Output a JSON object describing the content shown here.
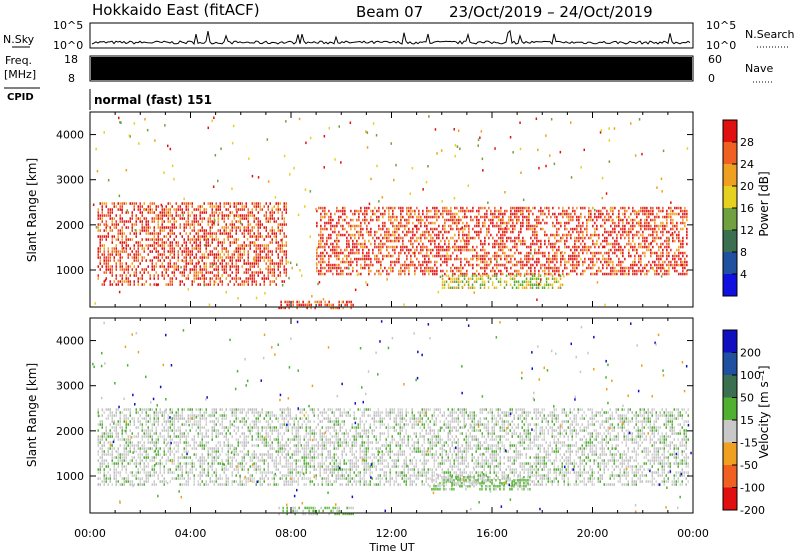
{
  "header": {
    "station": "Hokkaido East (fitACF)",
    "beam": "Beam 07",
    "dates": "23/Oct/2019 – 24/Oct/2019"
  },
  "chart_data": [
    {
      "type": "line",
      "id": "noise",
      "label_left": "N.Sky",
      "label_right": "N.Search",
      "ticks_left": [
        "10^5",
        "10^0"
      ],
      "ticks_right": [
        "10^5",
        "10^0"
      ],
      "legend_right_style": "dotted"
    },
    {
      "type": "bar",
      "id": "freq-nave",
      "label_left_top": "Freq.",
      "label_left_bottom": "[MHz]",
      "ticks_left": [
        "18",
        "8"
      ],
      "label_right": "Nave",
      "ticks_right": [
        "60",
        "0"
      ],
      "legend_right_style": "dotted"
    },
    {
      "type": "table",
      "id": "cpid",
      "label": "CPID",
      "value": "normal (fast) 151"
    },
    {
      "type": "heatmap",
      "id": "power",
      "ylabel": "Slant Range [km]",
      "xlabel": "",
      "yticks": [
        1000,
        2000,
        3000,
        4000
      ],
      "ylim": [
        180,
        4500
      ],
      "xlim": [
        0,
        24
      ],
      "colorbar_label": "Power [dB]",
      "colorbar_ticks": [
        "28",
        "24",
        "20",
        "16",
        "12",
        "8",
        "4"
      ],
      "colorbar_colors": [
        "#e01010",
        "#f06020",
        "#f0a020",
        "#e6d020",
        "#70a040",
        "#3a7050",
        "#2050a0",
        "#1010e0"
      ],
      "bands": [
        {
          "t0": 0.3,
          "t1": 7.8,
          "r0": 700,
          "r1": 2500,
          "level": "high"
        },
        {
          "t0": 9.0,
          "t1": 23.8,
          "r0": 900,
          "r1": 2400,
          "level": "high"
        },
        {
          "t0": 14.0,
          "t1": 18.8,
          "r0": 600,
          "r1": 900,
          "level": "medium"
        },
        {
          "t0": 7.5,
          "t1": 10.5,
          "r0": 180,
          "r1": 320,
          "level": "high"
        }
      ]
    },
    {
      "type": "heatmap",
      "id": "velocity",
      "ylabel": "Slant Range [km]",
      "xlabel": "Time UT",
      "yticks": [
        1000,
        2000,
        3000,
        4000
      ],
      "ylim": [
        180,
        4500
      ],
      "xlim": [
        0,
        24
      ],
      "xticks": [
        "00:00",
        "04:00",
        "08:00",
        "12:00",
        "16:00",
        "20:00",
        "00:00"
      ],
      "colorbar_label": "Velocity [m s⁻¹]",
      "colorbar_ticks": [
        "200",
        "100",
        "50",
        "15",
        "-15",
        "-50",
        "-100",
        "-200"
      ],
      "colorbar_colors": [
        "#1010c0",
        "#2050a0",
        "#3a7050",
        "#50b030",
        "#c8c8c8",
        "#f0a020",
        "#f06020",
        "#e01010"
      ],
      "bands": [
        {
          "t0": 0.3,
          "t1": 23.8,
          "r0": 800,
          "r1": 2500,
          "level": "grey"
        },
        {
          "t0": 13.5,
          "t1": 17.5,
          "r0": 700,
          "r1": 1000,
          "level": "green"
        },
        {
          "t0": 7.5,
          "t1": 10.5,
          "r0": 180,
          "r1": 320,
          "level": "green"
        }
      ]
    }
  ]
}
